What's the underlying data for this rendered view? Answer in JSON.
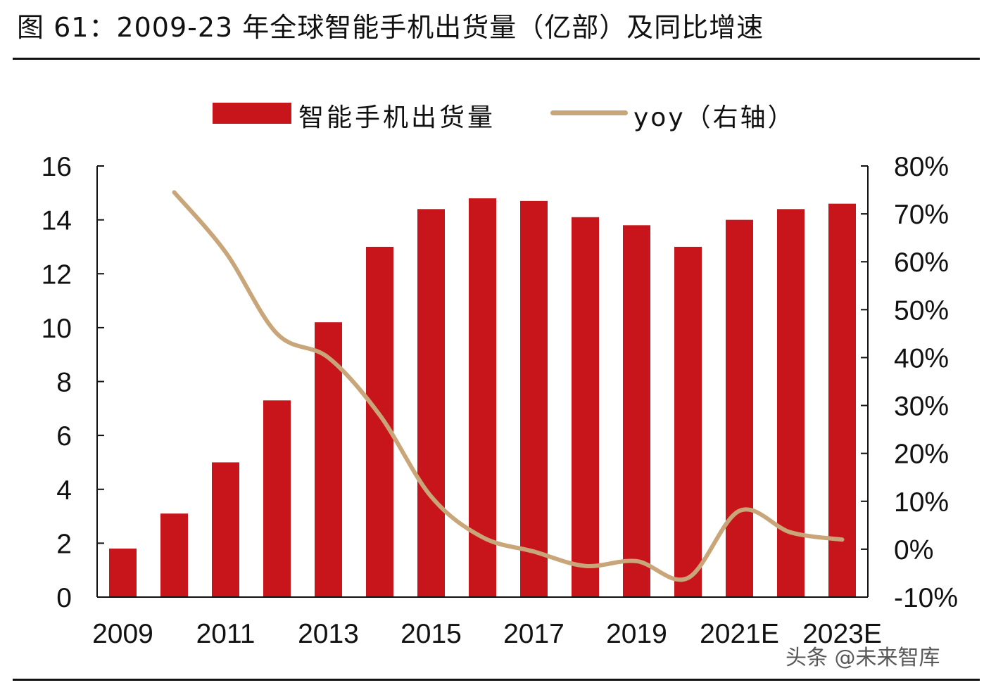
{
  "title": "图 61：2009-23 年全球智能手机出货量（亿部）及同比增速",
  "legend": {
    "bar_label": "智能手机出货量",
    "line_label": "yoy（右轴）"
  },
  "watermark": "头条 @未来智库",
  "colors": {
    "bar": "#C8151B",
    "line": "#C9A67A",
    "axis": "#111111"
  },
  "chart_data": {
    "type": "bar",
    "categories": [
      "2009",
      "2010",
      "2011",
      "2012",
      "2013",
      "2014",
      "2015",
      "2016",
      "2017",
      "2018",
      "2019",
      "2020",
      "2021E",
      "2022E",
      "2023E"
    ],
    "x_tick_labels": [
      "2009",
      "2011",
      "2013",
      "2015",
      "2017",
      "2019",
      "2021E",
      "2023E"
    ],
    "series": [
      {
        "name": "智能手机出货量",
        "type": "bar",
        "axis": "left",
        "values": [
          1.8,
          3.1,
          5.0,
          7.3,
          10.2,
          13.0,
          14.4,
          14.8,
          14.7,
          14.1,
          13.8,
          13.0,
          14.0,
          14.4,
          14.6
        ]
      },
      {
        "name": "yoy（右轴）",
        "type": "line",
        "axis": "right",
        "values": [
          null,
          74.5,
          62.0,
          45.0,
          40.0,
          28.0,
          11.0,
          2.5,
          -0.5,
          -3.5,
          -2.5,
          -6.0,
          8.0,
          3.5,
          2.0
        ]
      }
    ],
    "ylim_left": [
      0,
      16
    ],
    "yticks_left": [
      "0",
      "2",
      "4",
      "6",
      "8",
      "10",
      "12",
      "14",
      "16"
    ],
    "ylim_right": [
      -10,
      80
    ],
    "yticks_right": [
      "-10%",
      "0%",
      "10%",
      "20%",
      "30%",
      "40%",
      "50%",
      "60%",
      "70%",
      "80%"
    ],
    "grid": false,
    "legend_position": "top-center"
  }
}
